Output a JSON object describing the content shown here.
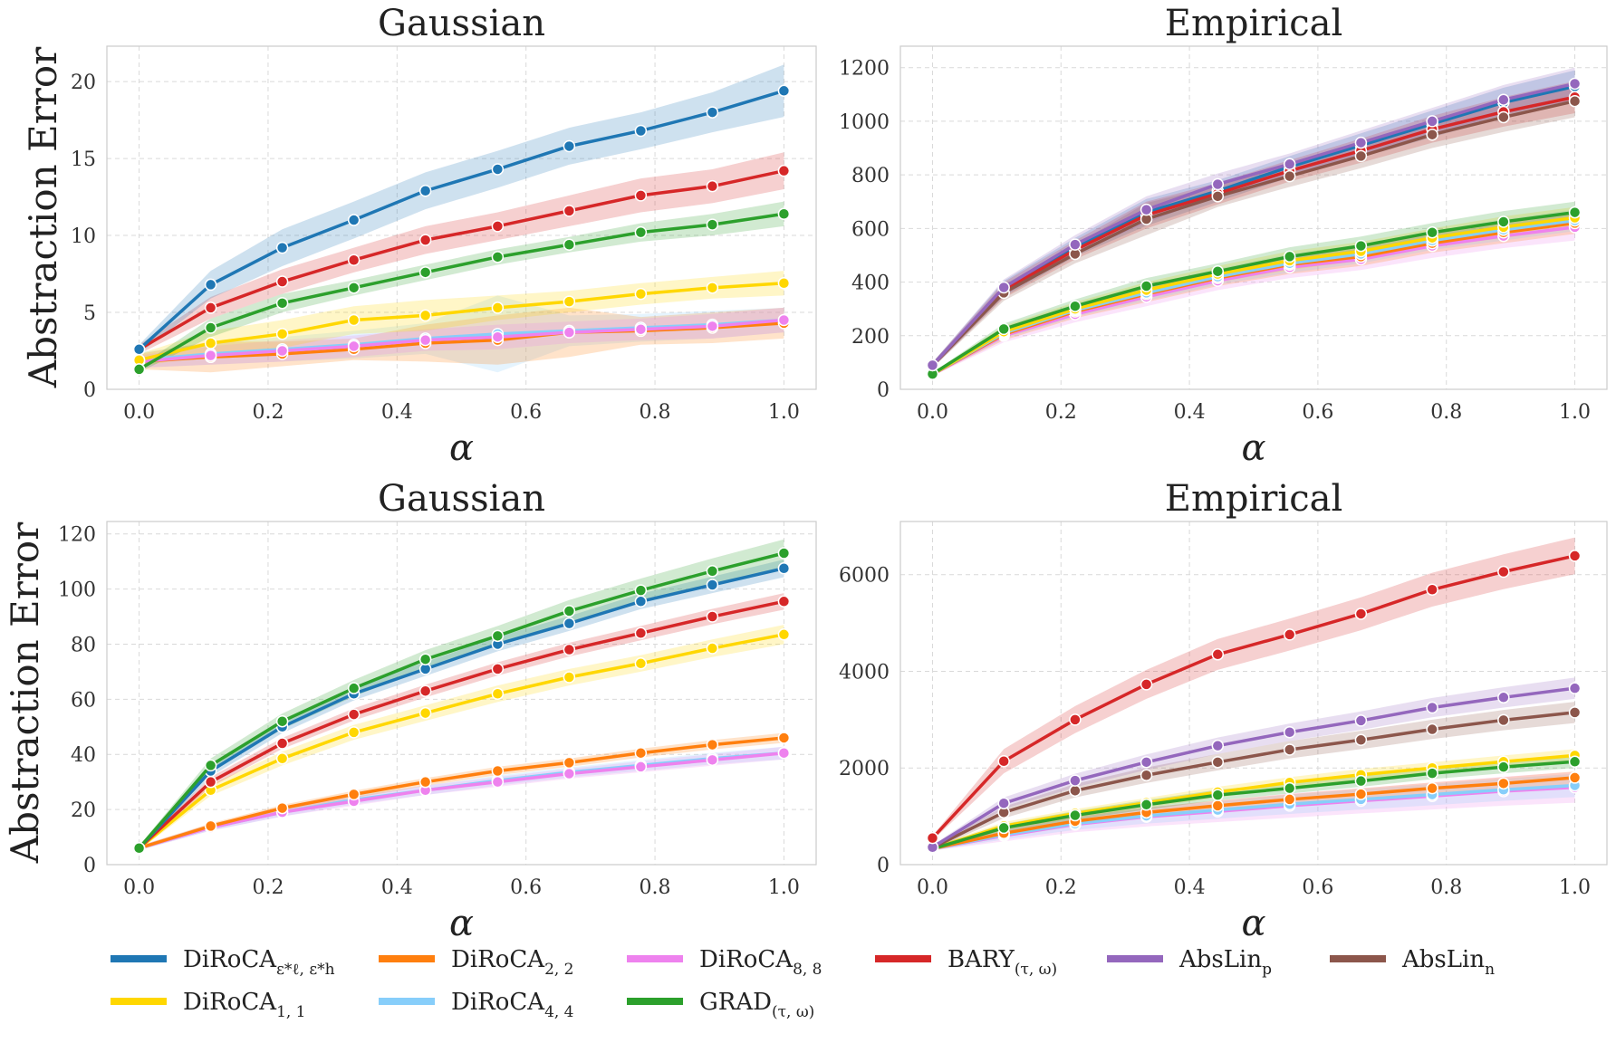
{
  "ylabel": "Abstraction Error",
  "xlabel": "α",
  "chart_data": [
    {
      "type": "line",
      "title": "Gaussian",
      "xlim": [
        -0.05,
        1.05
      ],
      "ylim": [
        0,
        22.3
      ],
      "yticks": [
        0,
        5,
        10,
        15,
        20
      ],
      "ytick_labels": [
        "0",
        "5",
        "10",
        "15",
        "20"
      ],
      "xticks": [
        0.0,
        0.2,
        0.4,
        0.6,
        0.8,
        1.0
      ],
      "xtick_labels": [
        "0.0",
        "0.2",
        "0.4",
        "0.6",
        "0.8",
        "1.0"
      ],
      "x": [
        0,
        0.111,
        0.222,
        0.333,
        0.444,
        0.556,
        0.667,
        0.778,
        0.889,
        1.0
      ],
      "series": [
        {
          "key": "diroca_44",
          "values": [
            1.9,
            2.3,
            2.6,
            2.9,
            3.3,
            3.6,
            3.8,
            4.0,
            4.2,
            4.5
          ],
          "band": [
            0.5,
            0.7,
            0.8,
            0.9,
            1.0,
            2.5,
            1.0,
            0.9,
            0.9,
            0.8
          ]
        },
        {
          "key": "diroca_22",
          "values": [
            1.8,
            2.1,
            2.3,
            2.6,
            3.0,
            3.2,
            3.7,
            3.8,
            4.0,
            4.3
          ],
          "band": [
            0.5,
            1.0,
            0.8,
            0.7,
            1.2,
            1.6,
            1.6,
            0.9,
            1.0,
            1.0
          ]
        },
        {
          "key": "diroca_88",
          "values": [
            1.8,
            2.2,
            2.5,
            2.8,
            3.2,
            3.4,
            3.7,
            3.9,
            4.1,
            4.5
          ],
          "band": [
            0.4,
            0.6,
            0.7,
            0.7,
            0.7,
            0.8,
            0.7,
            0.7,
            0.8,
            0.8
          ]
        },
        {
          "key": "diroca_11",
          "values": [
            1.9,
            3.0,
            3.6,
            4.5,
            4.8,
            5.3,
            5.7,
            6.2,
            6.6,
            6.9
          ],
          "band": [
            0.4,
            0.8,
            0.9,
            0.9,
            1.0,
            0.8,
            0.7,
            0.7,
            0.7,
            0.8
          ]
        },
        {
          "key": "grad",
          "values": [
            1.3,
            4.0,
            5.6,
            6.6,
            7.6,
            8.6,
            9.4,
            10.2,
            10.7,
            11.4
          ],
          "band": [
            0.2,
            0.6,
            0.6,
            0.5,
            0.5,
            0.5,
            0.5,
            0.6,
            0.7,
            0.8
          ]
        },
        {
          "key": "bary",
          "values": [
            2.6,
            5.3,
            7.0,
            8.4,
            9.7,
            10.6,
            11.6,
            12.6,
            13.2,
            14.2
          ],
          "band": [
            0.3,
            0.7,
            0.8,
            0.8,
            0.9,
            0.9,
            1.0,
            1.1,
            1.1,
            1.2
          ]
        },
        {
          "key": "diroca_eps",
          "values": [
            2.6,
            6.8,
            9.2,
            11.0,
            12.9,
            14.3,
            15.8,
            16.8,
            18.0,
            19.4
          ],
          "band": [
            0.3,
            0.9,
            1.2,
            1.2,
            1.2,
            1.2,
            1.2,
            1.2,
            1.3,
            1.7
          ]
        }
      ]
    },
    {
      "type": "line",
      "title": "Empirical",
      "xlim": [
        -0.05,
        1.05
      ],
      "ylim": [
        0,
        1280
      ],
      "yticks": [
        0,
        200,
        400,
        600,
        800,
        1000,
        1200
      ],
      "ytick_labels": [
        "0",
        "200",
        "400",
        "600",
        "800",
        "1000",
        "1200"
      ],
      "xticks": [
        0.0,
        0.2,
        0.4,
        0.6,
        0.8,
        1.0
      ],
      "xtick_labels": [
        "0.0",
        "0.2",
        "0.4",
        "0.6",
        "0.8",
        "1.0"
      ],
      "x": [
        0,
        0.111,
        0.222,
        0.333,
        0.444,
        0.556,
        0.667,
        0.778,
        0.889,
        1.0
      ],
      "series": [
        {
          "key": "diroca_88",
          "values": [
            55,
            200,
            280,
            345,
            405,
            455,
            485,
            535,
            572,
            605
          ],
          "band": [
            5,
            25,
            30,
            35,
            35,
            40,
            40,
            45,
            45,
            50
          ]
        },
        {
          "key": "diroca_22",
          "values": [
            56,
            205,
            290,
            355,
            415,
            465,
            495,
            545,
            585,
            620
          ],
          "band": [
            5,
            22,
            25,
            30,
            30,
            35,
            35,
            35,
            40,
            40
          ]
        },
        {
          "key": "diroca_44",
          "values": [
            56,
            210,
            295,
            360,
            420,
            470,
            505,
            555,
            595,
            630
          ],
          "band": [
            5,
            22,
            25,
            30,
            30,
            35,
            35,
            35,
            40,
            40
          ]
        },
        {
          "key": "diroca_11",
          "values": [
            56,
            215,
            300,
            370,
            430,
            480,
            515,
            565,
            605,
            640
          ],
          "band": [
            5,
            22,
            25,
            30,
            30,
            35,
            35,
            35,
            40,
            40
          ]
        },
        {
          "key": "grad",
          "values": [
            57,
            225,
            310,
            385,
            440,
            495,
            535,
            585,
            625,
            660
          ],
          "band": [
            5,
            20,
            25,
            30,
            30,
            35,
            35,
            35,
            40,
            40
          ]
        },
        {
          "key": "diroca_eps",
          "values": [
            90,
            375,
            530,
            660,
            740,
            830,
            910,
            990,
            1070,
            1130
          ],
          "band": [
            10,
            30,
            35,
            50,
            40,
            40,
            45,
            50,
            55,
            60
          ]
        },
        {
          "key": "bary",
          "values": [
            90,
            370,
            520,
            650,
            730,
            815,
            890,
            970,
            1035,
            1090
          ],
          "band": [
            10,
            30,
            35,
            50,
            40,
            40,
            45,
            50,
            55,
            60
          ]
        },
        {
          "key": "abslin_n",
          "values": [
            90,
            360,
            505,
            635,
            720,
            795,
            870,
            950,
            1015,
            1075
          ],
          "band": [
            10,
            30,
            35,
            60,
            40,
            40,
            45,
            50,
            55,
            60
          ]
        },
        {
          "key": "abslin_p",
          "values": [
            90,
            380,
            540,
            670,
            765,
            840,
            920,
            1000,
            1080,
            1140
          ],
          "band": [
            10,
            30,
            35,
            50,
            40,
            40,
            45,
            50,
            55,
            60
          ]
        }
      ]
    },
    {
      "type": "line",
      "title": "Gaussian",
      "xlim": [
        -0.05,
        1.05
      ],
      "ylim": [
        0,
        124.5
      ],
      "yticks": [
        0,
        20,
        40,
        60,
        80,
        100,
        120
      ],
      "ytick_labels": [
        "0",
        "20",
        "40",
        "60",
        "80",
        "100",
        "120"
      ],
      "xticks": [
        0.0,
        0.2,
        0.4,
        0.6,
        0.8,
        1.0
      ],
      "xtick_labels": [
        "0.0",
        "0.2",
        "0.4",
        "0.6",
        "0.8",
        "1.0"
      ],
      "x": [
        0,
        0.111,
        0.222,
        0.333,
        0.444,
        0.556,
        0.667,
        0.778,
        0.889,
        1.0
      ],
      "series": [
        {
          "key": "diroca_44",
          "values": [
            6,
            13.5,
            19,
            23.5,
            27,
            30.5,
            33.5,
            36,
            38.5,
            40.5
          ],
          "band": [
            0.8,
            1.2,
            1.5,
            1.6,
            1.7,
            1.8,
            1.8,
            2.0,
            2.1,
            2.3
          ]
        },
        {
          "key": "diroca_88",
          "values": [
            6,
            13.5,
            19,
            23,
            27,
            30,
            33,
            35.5,
            38,
            40.5
          ],
          "band": [
            0.8,
            1.2,
            1.5,
            1.6,
            1.7,
            1.8,
            1.8,
            2.0,
            2.1,
            2.3
          ]
        },
        {
          "key": "diroca_22",
          "values": [
            6,
            14,
            20.5,
            25.5,
            30,
            34,
            37,
            40.5,
            43.5,
            46
          ],
          "band": [
            0.8,
            1.0,
            1.2,
            1.3,
            1.4,
            1.5,
            1.5,
            1.6,
            1.7,
            1.8
          ]
        },
        {
          "key": "diroca_11",
          "values": [
            6,
            27,
            38.5,
            48,
            55,
            62,
            68,
            73,
            78.5,
            83.5
          ],
          "band": [
            0.8,
            2.0,
            2.5,
            2.7,
            2.8,
            3.0,
            3.0,
            3.0,
            3.2,
            3.5
          ]
        },
        {
          "key": "bary",
          "values": [
            6,
            30,
            44,
            54.5,
            63,
            71,
            78,
            84,
            90,
            95.5
          ],
          "band": [
            0.8,
            1.8,
            2.0,
            2.2,
            2.3,
            2.4,
            2.5,
            2.6,
            2.8,
            3.0
          ]
        },
        {
          "key": "diroca_eps",
          "values": [
            6,
            34,
            50,
            62,
            71,
            80,
            87.5,
            95.5,
            101.5,
            107.5
          ],
          "band": [
            0.8,
            2.0,
            2.3,
            2.4,
            2.5,
            2.6,
            2.7,
            2.8,
            3.0,
            3.2
          ]
        },
        {
          "key": "grad",
          "values": [
            6,
            36,
            52,
            64,
            74.5,
            83,
            92,
            99.5,
            106.5,
            113
          ],
          "band": [
            0.8,
            2.5,
            2.8,
            3.0,
            3.3,
            3.6,
            4.0,
            4.3,
            4.6,
            5.0
          ]
        }
      ]
    },
    {
      "type": "line",
      "title": "Empirical",
      "xlim": [
        -0.05,
        1.05
      ],
      "ylim": [
        0,
        7100
      ],
      "yticks": [
        0,
        2000,
        4000,
        6000
      ],
      "ytick_labels": [
        "0",
        "2000",
        "4000",
        "6000"
      ],
      "xticks": [
        0.0,
        0.2,
        0.4,
        0.6,
        0.8,
        1.0
      ],
      "xtick_labels": [
        "0.0",
        "0.2",
        "0.4",
        "0.6",
        "0.8",
        "1.0"
      ],
      "x": [
        0,
        0.111,
        0.222,
        0.333,
        0.444,
        0.556,
        0.667,
        0.778,
        0.889,
        1.0
      ],
      "series": [
        {
          "key": "diroca_88",
          "values": [
            330,
            600,
            830,
            990,
            1100,
            1220,
            1320,
            1420,
            1520,
            1600
          ],
          "band": [
            40,
            120,
            160,
            200,
            220,
            250,
            260,
            280,
            300,
            320
          ]
        },
        {
          "key": "diroca_44",
          "values": [
            330,
            620,
            850,
            1010,
            1130,
            1250,
            1350,
            1450,
            1550,
            1640
          ],
          "band": [
            40,
            100,
            130,
            160,
            180,
            200,
            210,
            220,
            230,
            240
          ]
        },
        {
          "key": "diroca_22",
          "values": [
            330,
            650,
            900,
            1080,
            1220,
            1350,
            1460,
            1580,
            1680,
            1800
          ],
          "band": [
            40,
            80,
            90,
            100,
            110,
            110,
            120,
            120,
            130,
            130
          ]
        },
        {
          "key": "diroca_11",
          "values": [
            330,
            800,
            1060,
            1280,
            1500,
            1700,
            1860,
            2000,
            2130,
            2260
          ],
          "band": [
            40,
            80,
            90,
            100,
            110,
            110,
            120,
            120,
            130,
            130
          ]
        },
        {
          "key": "grad",
          "values": [
            330,
            760,
            1020,
            1240,
            1440,
            1580,
            1730,
            1890,
            2020,
            2130
          ],
          "band": [
            40,
            80,
            90,
            100,
            110,
            110,
            120,
            120,
            130,
            130
          ]
        },
        {
          "key": "abslin_n",
          "values": [
            350,
            1080,
            1530,
            1850,
            2120,
            2380,
            2580,
            2800,
            2990,
            3150
          ],
          "band": [
            40,
            120,
            140,
            160,
            170,
            180,
            190,
            200,
            210,
            220
          ]
        },
        {
          "key": "abslin_p",
          "values": [
            360,
            1270,
            1740,
            2120,
            2460,
            2740,
            2980,
            3250,
            3460,
            3650
          ],
          "band": [
            40,
            120,
            140,
            160,
            170,
            180,
            190,
            200,
            210,
            220
          ]
        },
        {
          "key": "bary",
          "values": [
            550,
            2140,
            3000,
            3730,
            4350,
            4760,
            5190,
            5690,
            6060,
            6390
          ],
          "band": [
            50,
            250,
            280,
            300,
            320,
            330,
            340,
            350,
            360,
            380
          ]
        }
      ]
    }
  ],
  "legend": [
    {
      "key": "diroca_eps",
      "label": "DiRoCA",
      "sub": "ε*ℓ, ε*h",
      "color": "#1f77b4"
    },
    {
      "key": "diroca_22",
      "label": "DiRoCA",
      "sub": "2, 2",
      "color": "#ff7f0e"
    },
    {
      "key": "diroca_88",
      "label": "DiRoCA",
      "sub": "8, 8",
      "color": "#ee82ee"
    },
    {
      "key": "bary",
      "label": "BARY",
      "sub": "(τ, ω)",
      "color": "#d62728"
    },
    {
      "key": "abslin_p",
      "label": "AbsLin",
      "sub": "p",
      "color": "#9467bd"
    },
    {
      "key": "abslin_n",
      "label": "AbsLin",
      "sub": "n",
      "color": "#8c564b"
    },
    {
      "key": "diroca_11",
      "label": "DiRoCA",
      "sub": "1, 1",
      "color": "#ffd700"
    },
    {
      "key": "diroca_44",
      "label": "DiRoCA",
      "sub": "4, 4",
      "color": "#87cefa"
    },
    {
      "key": "grad",
      "label": "GRAD",
      "sub": "(τ, ω)",
      "color": "#2ca02c"
    }
  ]
}
